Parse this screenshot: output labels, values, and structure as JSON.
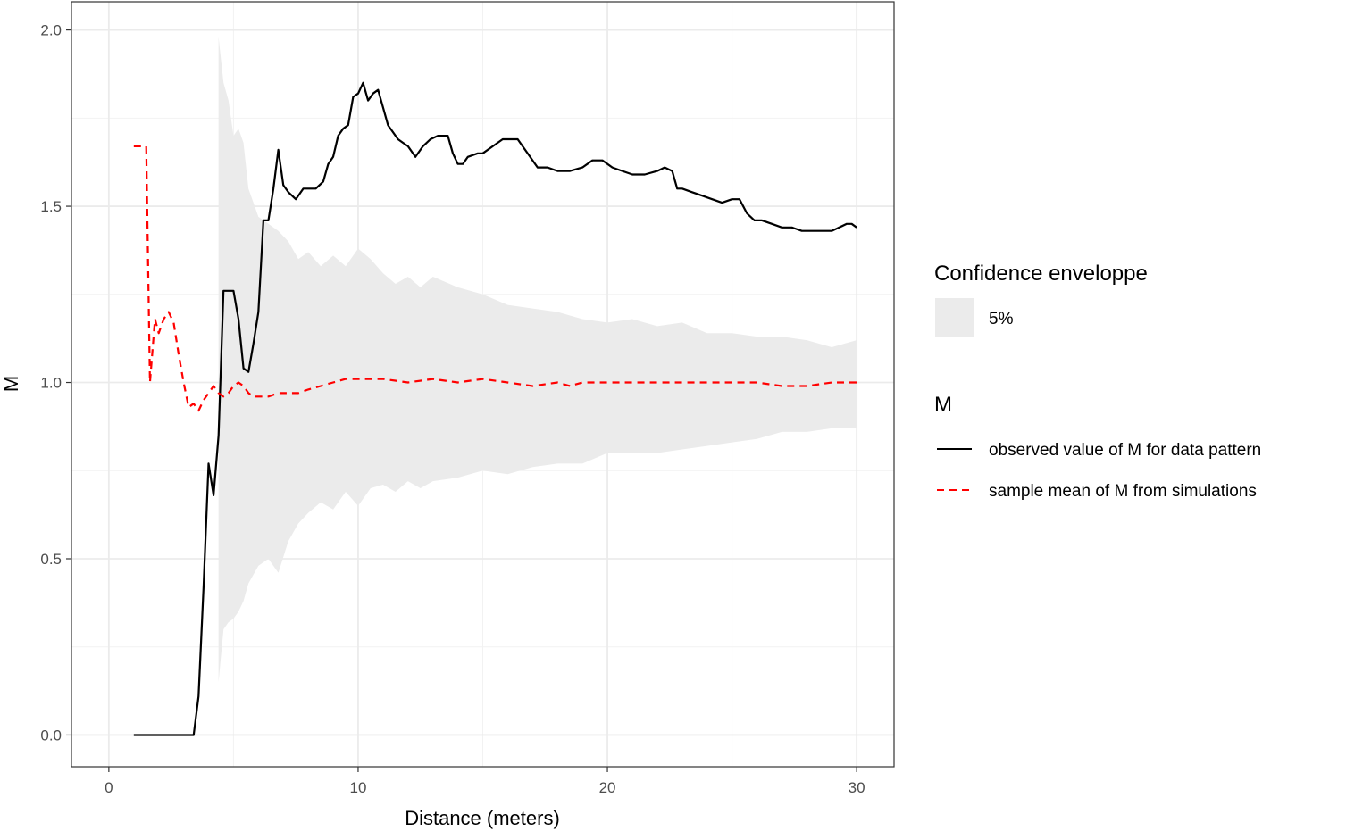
{
  "chart_data": {
    "type": "line",
    "xlabel": "Distance (meters)",
    "ylabel": "M",
    "xlim": [
      -1.5,
      31.5
    ],
    "ylim": [
      -0.09,
      2.08
    ],
    "x_ticks": [
      0,
      10,
      20,
      30
    ],
    "x_tick_labels": [
      "0",
      "10",
      "20",
      "30"
    ],
    "y_ticks": [
      0.0,
      0.5,
      1.0,
      1.5,
      2.0
    ],
    "y_tick_labels": [
      "0.0",
      "0.5",
      "1.0",
      "1.5",
      "2.0"
    ],
    "grid": true,
    "legend": {
      "placement": "right",
      "groups": [
        {
          "title": "Confidence enveloppe",
          "entries": [
            {
              "label": "5%",
              "kind": "fill",
              "color": "#ebebeb"
            }
          ]
        },
        {
          "title": "M",
          "entries": [
            {
              "label": "observed value of M for data pattern",
              "kind": "solid",
              "color": "#000000"
            },
            {
              "label": "sample mean of M from simulations",
              "kind": "dashed",
              "color": "#ff0000"
            }
          ]
        }
      ]
    },
    "envelope": {
      "name": "5%",
      "color": "#ebebeb",
      "x": [
        4.4,
        4.6,
        4.8,
        5.0,
        5.2,
        5.4,
        5.6,
        6.0,
        6.4,
        6.8,
        7.2,
        7.6,
        8.0,
        8.5,
        9.0,
        9.5,
        10.0,
        10.5,
        11.0,
        11.5,
        12.0,
        12.5,
        13.0,
        14.0,
        15.0,
        16.0,
        17.0,
        18.0,
        19.0,
        20.0,
        21.0,
        22.0,
        23.0,
        24.0,
        25.0,
        26.0,
        27.0,
        28.0,
        29.0,
        30.0
      ],
      "upper": [
        1.98,
        1.85,
        1.8,
        1.7,
        1.72,
        1.68,
        1.55,
        1.47,
        1.45,
        1.43,
        1.4,
        1.35,
        1.37,
        1.33,
        1.36,
        1.33,
        1.38,
        1.35,
        1.31,
        1.28,
        1.3,
        1.27,
        1.3,
        1.27,
        1.25,
        1.22,
        1.21,
        1.2,
        1.18,
        1.17,
        1.18,
        1.16,
        1.17,
        1.14,
        1.14,
        1.13,
        1.13,
        1.12,
        1.1,
        1.12
      ],
      "lower": [
        0.15,
        0.3,
        0.32,
        0.33,
        0.35,
        0.38,
        0.43,
        0.48,
        0.5,
        0.46,
        0.55,
        0.6,
        0.63,
        0.66,
        0.64,
        0.69,
        0.65,
        0.7,
        0.71,
        0.69,
        0.72,
        0.7,
        0.72,
        0.73,
        0.75,
        0.74,
        0.76,
        0.77,
        0.77,
        0.8,
        0.8,
        0.8,
        0.81,
        0.82,
        0.83,
        0.84,
        0.86,
        0.86,
        0.87,
        0.87
      ]
    },
    "series": [
      {
        "name": "observed value of M for data pattern",
        "color": "#000000",
        "style": "solid",
        "x": [
          1.0,
          3.4,
          3.6,
          3.8,
          4.0,
          4.2,
          4.4,
          4.6,
          5.0,
          5.2,
          5.4,
          5.6,
          5.8,
          6.0,
          6.2,
          6.4,
          6.6,
          6.8,
          7.0,
          7.2,
          7.5,
          7.8,
          8.0,
          8.3,
          8.6,
          8.8,
          9.0,
          9.2,
          9.4,
          9.6,
          9.8,
          10.0,
          10.2,
          10.4,
          10.6,
          10.8,
          11.0,
          11.2,
          11.4,
          11.6,
          11.8,
          12.0,
          12.3,
          12.6,
          12.9,
          13.2,
          13.6,
          13.8,
          14.0,
          14.2,
          14.4,
          14.8,
          15.0,
          15.4,
          15.8,
          16.1,
          16.4,
          16.8,
          17.2,
          17.6,
          18.0,
          18.5,
          19.0,
          19.4,
          19.8,
          20.2,
          20.6,
          21.0,
          21.5,
          22.0,
          22.3,
          22.6,
          22.8,
          23.0,
          23.4,
          23.8,
          24.2,
          24.6,
          25.0,
          25.3,
          25.6,
          25.9,
          26.2,
          26.6,
          27.0,
          27.4,
          27.8,
          28.2,
          28.6,
          29.0,
          29.3,
          29.6,
          29.8,
          30.0
        ],
        "y": [
          0.0,
          0.0,
          0.11,
          0.42,
          0.77,
          0.68,
          0.85,
          1.26,
          1.26,
          1.18,
          1.04,
          1.03,
          1.11,
          1.2,
          1.46,
          1.46,
          1.55,
          1.66,
          1.56,
          1.54,
          1.52,
          1.55,
          1.55,
          1.55,
          1.57,
          1.62,
          1.64,
          1.7,
          1.72,
          1.73,
          1.81,
          1.82,
          1.85,
          1.8,
          1.82,
          1.83,
          1.78,
          1.73,
          1.71,
          1.69,
          1.68,
          1.67,
          1.64,
          1.67,
          1.69,
          1.7,
          1.7,
          1.65,
          1.62,
          1.62,
          1.64,
          1.65,
          1.65,
          1.67,
          1.69,
          1.69,
          1.69,
          1.65,
          1.61,
          1.61,
          1.6,
          1.6,
          1.61,
          1.63,
          1.63,
          1.61,
          1.6,
          1.59,
          1.59,
          1.6,
          1.61,
          1.6,
          1.55,
          1.55,
          1.54,
          1.53,
          1.52,
          1.51,
          1.52,
          1.52,
          1.48,
          1.46,
          1.46,
          1.45,
          1.44,
          1.44,
          1.43,
          1.43,
          1.43,
          1.43,
          1.44,
          1.45,
          1.45,
          1.44
        ]
      },
      {
        "name": "sample mean of M from simulations",
        "color": "#ff0000",
        "style": "dashed",
        "x": [
          1.0,
          1.5,
          1.65,
          1.85,
          2.0,
          2.2,
          2.4,
          2.6,
          2.8,
          3.0,
          3.2,
          3.4,
          3.6,
          3.8,
          4.0,
          4.2,
          4.4,
          4.6,
          4.8,
          5.0,
          5.2,
          5.4,
          5.6,
          5.8,
          6.0,
          6.4,
          6.8,
          7.2,
          7.6,
          8.0,
          8.5,
          9.0,
          9.5,
          10.0,
          10.5,
          11.0,
          12.0,
          13.0,
          14.0,
          15.0,
          16.0,
          17.0,
          18.0,
          18.5,
          19.0,
          20.0,
          21.0,
          22.0,
          23.0,
          24.0,
          25.0,
          26.0,
          27.0,
          28.0,
          29.0,
          30.0
        ],
        "y": [
          1.67,
          1.67,
          1.0,
          1.18,
          1.14,
          1.18,
          1.2,
          1.17,
          1.08,
          1.0,
          0.93,
          0.94,
          0.92,
          0.95,
          0.97,
          0.99,
          0.97,
          0.96,
          0.97,
          0.99,
          1.0,
          0.99,
          0.97,
          0.96,
          0.96,
          0.96,
          0.97,
          0.97,
          0.97,
          0.98,
          0.99,
          1.0,
          1.01,
          1.01,
          1.01,
          1.01,
          1.0,
          1.01,
          1.0,
          1.01,
          1.0,
          0.99,
          1.0,
          0.99,
          1.0,
          1.0,
          1.0,
          1.0,
          1.0,
          1.0,
          1.0,
          1.0,
          0.99,
          0.99,
          1.0,
          1.0
        ]
      }
    ]
  }
}
